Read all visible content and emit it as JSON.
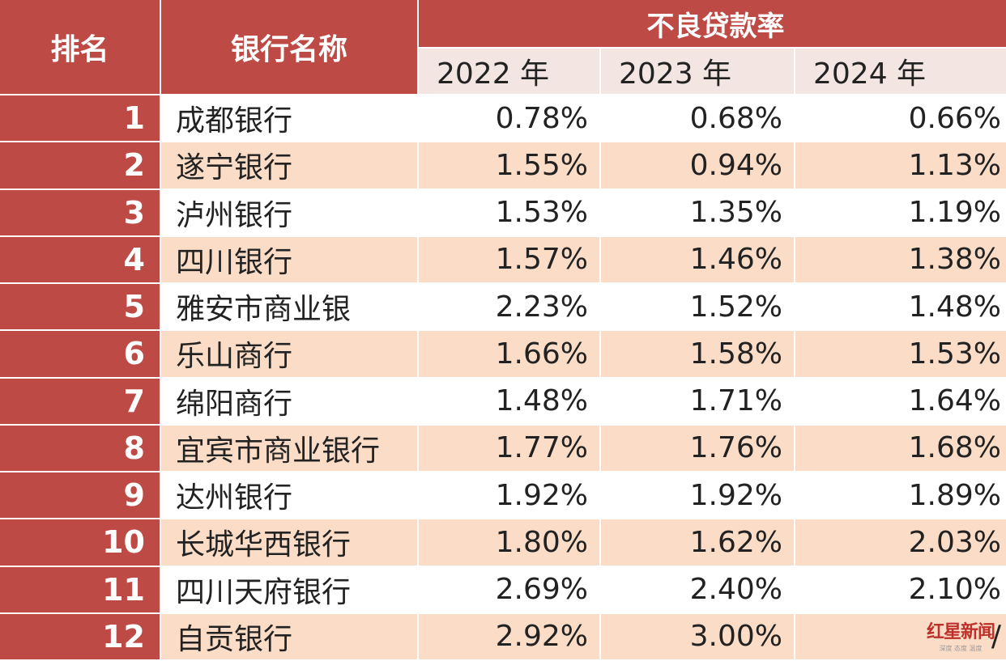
{
  "header": {
    "rank_label": "排名",
    "bank_label": "银行名称",
    "group_label": "不良贷款率",
    "years": [
      "2022 年",
      "2023 年",
      "2024 年"
    ]
  },
  "rows": [
    {
      "rank": "1",
      "bank": "成都银行",
      "v2022": "0.78%",
      "v2023": "0.68%",
      "v2024": "0.66%"
    },
    {
      "rank": "2",
      "bank": "遂宁银行",
      "v2022": "1.55%",
      "v2023": "0.94%",
      "v2024": "1.13%"
    },
    {
      "rank": "3",
      "bank": "泸州银行",
      "v2022": "1.53%",
      "v2023": "1.35%",
      "v2024": "1.19%"
    },
    {
      "rank": "4",
      "bank": "四川银行",
      "v2022": "1.57%",
      "v2023": "1.46%",
      "v2024": "1.38%"
    },
    {
      "rank": "5",
      "bank": "雅安市商业银",
      "v2022": "2.23%",
      "v2023": "1.52%",
      "v2024": "1.48%"
    },
    {
      "rank": "6",
      "bank": "乐山商行",
      "v2022": "1.66%",
      "v2023": "1.58%",
      "v2024": "1.53%"
    },
    {
      "rank": "7",
      "bank": "绵阳商行",
      "v2022": "1.48%",
      "v2023": "1.71%",
      "v2024": "1.64%"
    },
    {
      "rank": "8",
      "bank": "宜宾市商业银行",
      "v2022": "1.77%",
      "v2023": "1.76%",
      "v2024": "1.68%"
    },
    {
      "rank": "9",
      "bank": "达州银行",
      "v2022": "1.92%",
      "v2023": "1.92%",
      "v2024": "1.89%"
    },
    {
      "rank": "10",
      "bank": "长城华西银行",
      "v2022": "1.80%",
      "v2023": "1.62%",
      "v2024": "2.03%"
    },
    {
      "rank": "11",
      "bank": "四川天府银行",
      "v2022": "2.69%",
      "v2023": "2.40%",
      "v2024": "2.10%"
    },
    {
      "rank": "12",
      "bank": "自贡银行",
      "v2022": "2.92%",
      "v2023": "3.00%",
      "v2024": "/"
    }
  ],
  "watermark": {
    "main": "红星新闻",
    "sub": "深度 态度 温度"
  },
  "colors": {
    "header_red": "#bd4a45",
    "row_stripe": "#fbdcc7",
    "year_header_bg": "#f3e6e2"
  }
}
